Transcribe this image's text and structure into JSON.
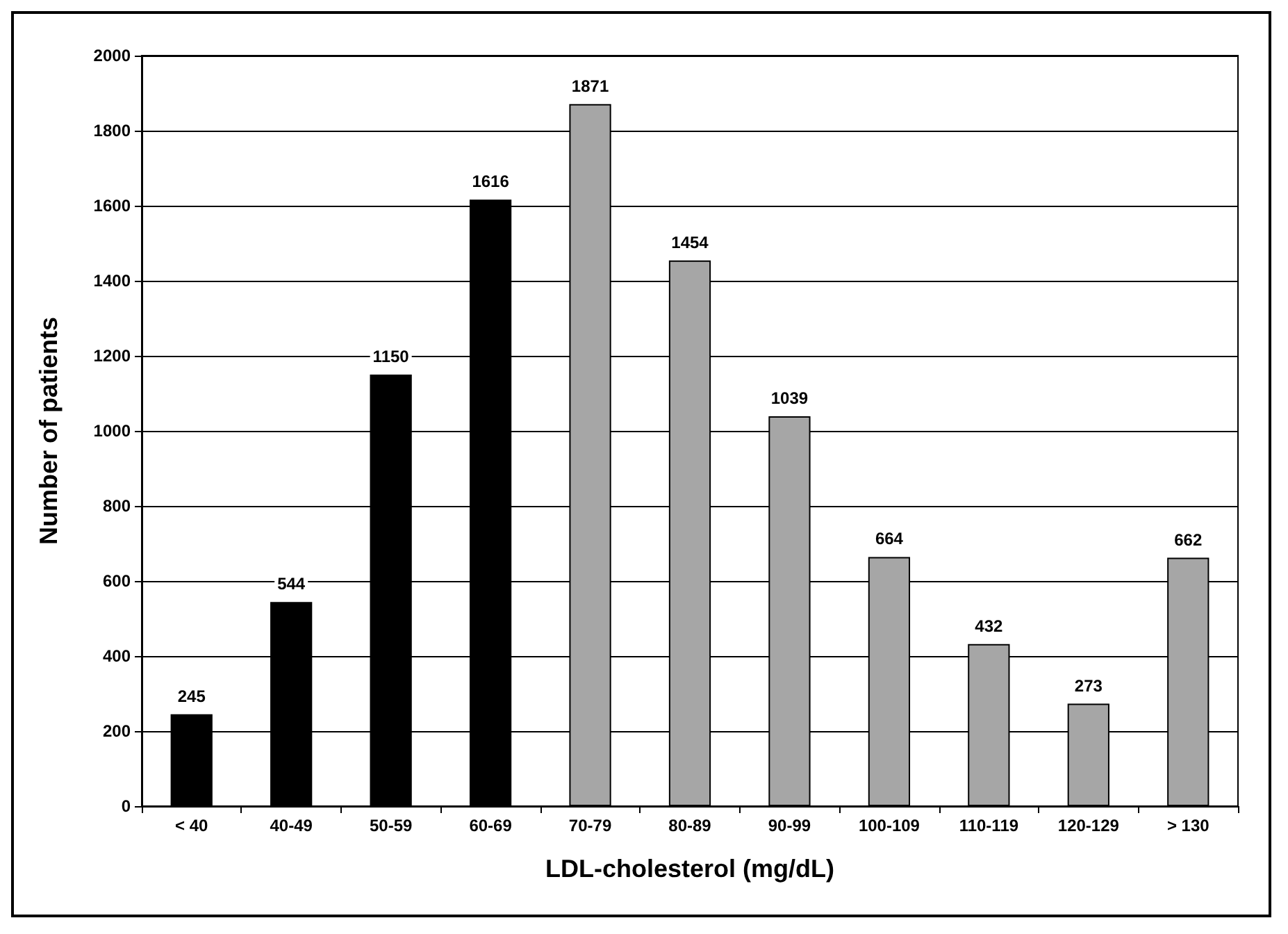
{
  "chart_data": {
    "type": "bar",
    "xlabel": "LDL-cholesterol (mg/dL)",
    "ylabel": "Number of patients",
    "categories": [
      "< 40",
      "40-49",
      "50-59",
      "60-69",
      "70-79",
      "80-89",
      "90-99",
      "100-109",
      "110-119",
      "120-129",
      "> 130"
    ],
    "values": [
      245,
      544,
      1150,
      1616,
      1871,
      1454,
      1039,
      664,
      432,
      273,
      662
    ],
    "colors": [
      "#000000",
      "#000000",
      "#000000",
      "#000000",
      "#a6a6a6",
      "#a6a6a6",
      "#a6a6a6",
      "#a6a6a6",
      "#a6a6a6",
      "#a6a6a6",
      "#a6a6a6"
    ],
    "ylim": [
      0,
      2000
    ],
    "yticks": [
      0,
      200,
      400,
      600,
      800,
      1000,
      1200,
      1400,
      1600,
      1800,
      2000
    ],
    "grid": "y",
    "data_labels": true
  }
}
